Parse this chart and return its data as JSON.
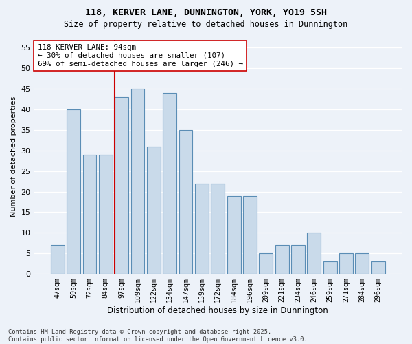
{
  "title1": "118, KERVER LANE, DUNNINGTON, YORK, YO19 5SH",
  "title2": "Size of property relative to detached houses in Dunnington",
  "xlabel": "Distribution of detached houses by size in Dunnington",
  "ylabel": "Number of detached properties",
  "categories": [
    "47sqm",
    "59sqm",
    "72sqm",
    "84sqm",
    "97sqm",
    "109sqm",
    "122sqm",
    "134sqm",
    "147sqm",
    "159sqm",
    "172sqm",
    "184sqm",
    "196sqm",
    "209sqm",
    "221sqm",
    "234sqm",
    "246sqm",
    "259sqm",
    "271sqm",
    "284sqm",
    "296sqm"
  ],
  "values": [
    7,
    40,
    29,
    29,
    43,
    45,
    31,
    44,
    35,
    22,
    22,
    19,
    19,
    5,
    7,
    7,
    10,
    3,
    5,
    5,
    3
  ],
  "bar_color": "#c9daea",
  "bar_edge_color": "#5a8db5",
  "vline_color": "#cc0000",
  "annotation_text": "118 KERVER LANE: 94sqm\n← 30% of detached houses are smaller (107)\n69% of semi-detached houses are larger (246) →",
  "annotation_box_color": "#ffffff",
  "annotation_box_edge_color": "#cc0000",
  "ylim": [
    0,
    57
  ],
  "yticks": [
    0,
    5,
    10,
    15,
    20,
    25,
    30,
    35,
    40,
    45,
    50,
    55
  ],
  "footer": "Contains HM Land Registry data © Crown copyright and database right 2025.\nContains public sector information licensed under the Open Government Licence v3.0.",
  "background_color": "#edf2f9",
  "grid_color": "#ffffff"
}
